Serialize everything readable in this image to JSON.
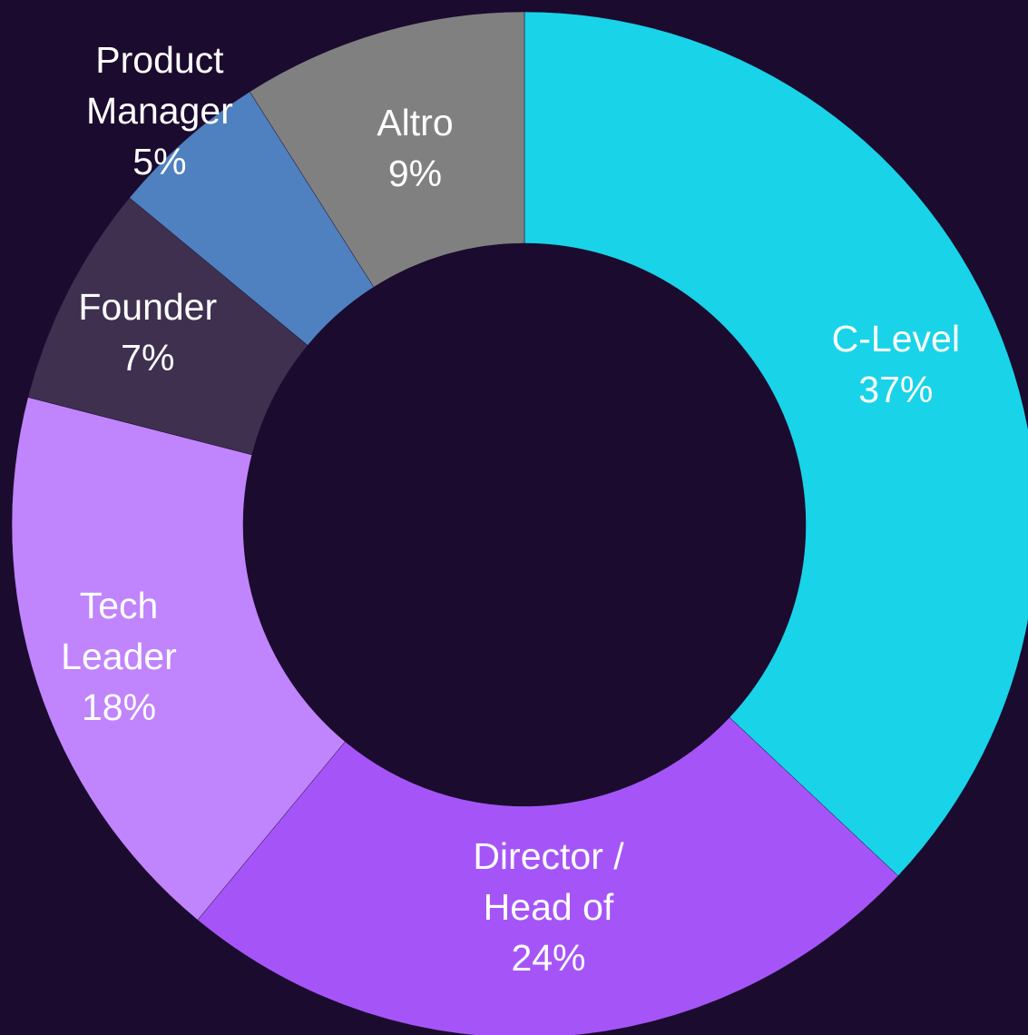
{
  "chart_data": {
    "type": "donut",
    "categories": [
      "C-Level",
      "Director / Head of",
      "Tech Leader",
      "Founder",
      "Product Manager",
      "Altro"
    ],
    "values": [
      37,
      24,
      18,
      7,
      5,
      9
    ],
    "value_labels": [
      "37%",
      "24%",
      "18%",
      "7%",
      "5%",
      "9%"
    ],
    "colors": [
      "#19d3e8",
      "#a555f7",
      "#c084fc",
      "#3f3050",
      "#4f80bf",
      "#808080"
    ]
  }
}
